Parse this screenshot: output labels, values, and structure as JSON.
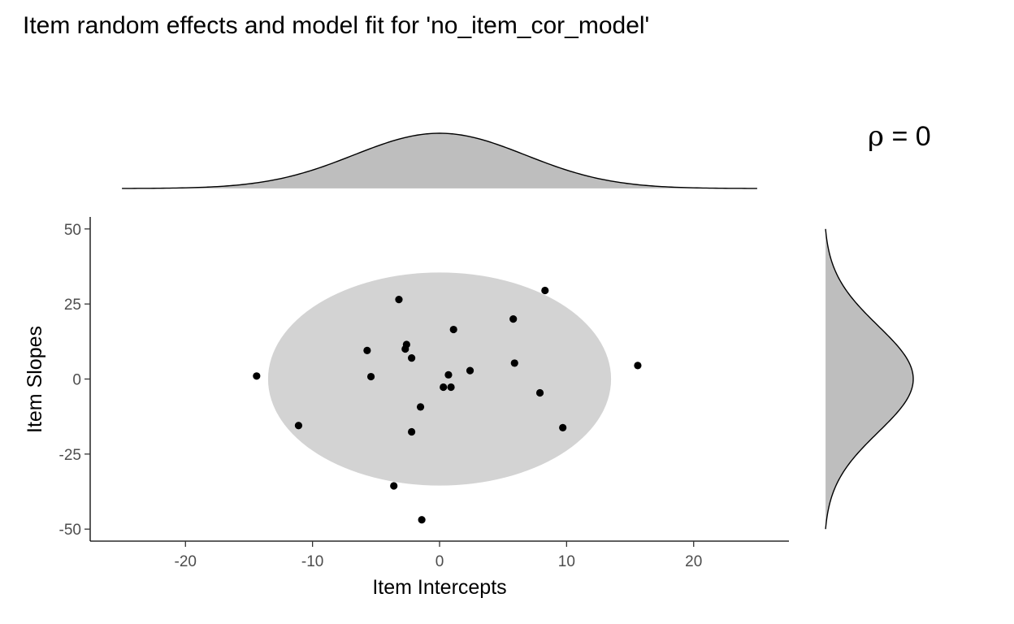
{
  "chart_data": {
    "type": "scatter",
    "title": "Item random effects and model fit for 'no_item_cor_model'",
    "xlabel": "Item Intercepts",
    "ylabel": "Item Slopes",
    "xlim": [
      -27.5,
      27.5
    ],
    "ylim": [
      -54,
      54
    ],
    "xticks": [
      -20,
      -10,
      0,
      10,
      20
    ],
    "yticks": [
      -50,
      -25,
      0,
      25,
      50
    ],
    "xtick_labels": [
      "-20",
      "-10",
      "0",
      "10",
      "20"
    ],
    "ytick_labels": [
      "-50",
      "-25",
      "0",
      "25",
      "50"
    ],
    "grid": false,
    "annotation": {
      "symbol": "ρ",
      "rest": " = 0"
    },
    "ellipse": {
      "center": [
        0,
        0
      ],
      "x_radius": 13.5,
      "y_radius": 35.5,
      "color": "#d3d3d3"
    },
    "marginal_x": {
      "mean": 0,
      "sd": 6.75,
      "range": [
        -25,
        25
      ],
      "color": "#bebebe"
    },
    "marginal_y": {
      "mean": 0,
      "sd": 17.75,
      "range": [
        -50,
        50
      ],
      "color": "#bebebe"
    },
    "point_color": "#000000",
    "points": [
      {
        "x": 8.3,
        "y": 29.5
      },
      {
        "x": -3.2,
        "y": 26.5
      },
      {
        "x": 5.8,
        "y": 20
      },
      {
        "x": 1.1,
        "y": 16.5
      },
      {
        "x": -2.6,
        "y": 11.5
      },
      {
        "x": -2.7,
        "y": 10
      },
      {
        "x": -5.7,
        "y": 9.5
      },
      {
        "x": -2.2,
        "y": 7
      },
      {
        "x": 5.9,
        "y": 5.3
      },
      {
        "x": 15.6,
        "y": 4.5
      },
      {
        "x": 2.4,
        "y": 2.8
      },
      {
        "x": 0.7,
        "y": 1.4
      },
      {
        "x": -14.4,
        "y": 1
      },
      {
        "x": -5.4,
        "y": 0.8
      },
      {
        "x": 0.3,
        "y": -2.7
      },
      {
        "x": 0.9,
        "y": -2.7
      },
      {
        "x": 7.9,
        "y": -4.6
      },
      {
        "x": -1.5,
        "y": -9.3
      },
      {
        "x": -11.1,
        "y": -15.5
      },
      {
        "x": 9.7,
        "y": -16.2
      },
      {
        "x": -2.2,
        "y": -17.6
      },
      {
        "x": -3.6,
        "y": -35.6
      },
      {
        "x": -1.4,
        "y": -46.9
      }
    ]
  }
}
